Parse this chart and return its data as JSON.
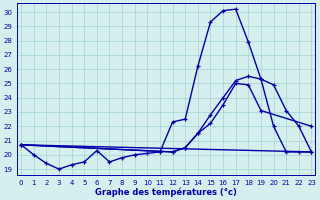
{
  "xlabel": "Graphe des températures (°c)",
  "xlim": [
    -0.3,
    23.3
  ],
  "ylim": [
    18.6,
    30.6
  ],
  "yticks": [
    19,
    20,
    21,
    22,
    23,
    24,
    25,
    26,
    27,
    28,
    29,
    30
  ],
  "xticks": [
    0,
    1,
    2,
    3,
    4,
    5,
    6,
    7,
    8,
    9,
    10,
    11,
    12,
    13,
    14,
    15,
    16,
    17,
    18,
    19,
    20,
    21,
    22,
    23
  ],
  "bg_color": "#d5eeee",
  "grid_color": "#a8d8d8",
  "line_color": "#0000aa",
  "series1_x": [
    0,
    1,
    2,
    3,
    4,
    5,
    6,
    7,
    8,
    9,
    10,
    11,
    12,
    13,
    14,
    15,
    16,
    17,
    18,
    19,
    20,
    21,
    22,
    23
  ],
  "series1_y": [
    20.7,
    20.0,
    19.4,
    19.0,
    19.3,
    19.5,
    20.3,
    19.5,
    19.8,
    20.0,
    20.1,
    20.2,
    22.3,
    22.5,
    26.2,
    29.3,
    30.1,
    30.2,
    27.9,
    25.3,
    24.9,
    23.1,
    22.0,
    20.2
  ],
  "series2_x": [
    0,
    12,
    13,
    14,
    15,
    16,
    17,
    18,
    19,
    20,
    21,
    22,
    23
  ],
  "series2_y": [
    20.7,
    20.2,
    20.5,
    21.5,
    22.8,
    24.0,
    25.2,
    25.5,
    25.3,
    22.0,
    20.2,
    20.2,
    20.2
  ],
  "series3_x": [
    0,
    12,
    13,
    14,
    15,
    16,
    17,
    18,
    19,
    23
  ],
  "series3_y": [
    20.7,
    20.2,
    20.5,
    21.5,
    22.2,
    23.5,
    25.0,
    24.9,
    23.1,
    22.0
  ],
  "series4_x": [
    0,
    23
  ],
  "series4_y": [
    20.7,
    20.2
  ]
}
